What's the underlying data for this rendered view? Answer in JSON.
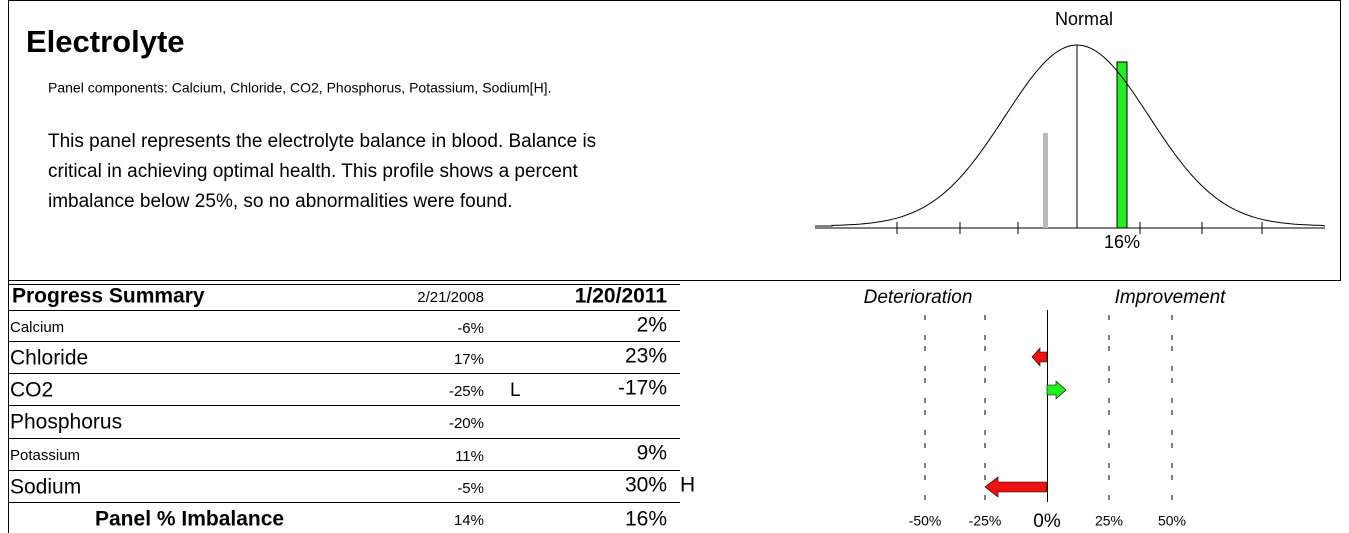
{
  "header": {
    "title": "Electrolyte",
    "components": "Panel components: Calcium, Chloride, CO2, Phosphorus, Potassium, Sodium[H].",
    "description": [
      "This panel represents the electrolyte balance in blood. Balance is",
      "critical in achieving optimal health. This profile shows a percent",
      "imbalance below 25%, so no abnormalities were found."
    ]
  },
  "curve": {
    "label": "Normal",
    "value_label": "16%"
  },
  "table": {
    "title": "Progress Summary",
    "columns": [
      "2/21/2008",
      "1/20/2011"
    ],
    "rows": [
      {
        "name": "Calcium",
        "previous": "-6%",
        "current": "2%"
      },
      {
        "name": "Chloride",
        "previous": "17%",
        "current": "23%"
      },
      {
        "name": "CO2",
        "previous": "-25%",
        "previous_flag": "L",
        "current": "-17%"
      },
      {
        "name": "Phosphorus",
        "previous": "-20%"
      },
      {
        "name": "Potassium",
        "previous": "11%",
        "current": "9%"
      },
      {
        "name": "Sodium",
        "previous": "-5%",
        "current": "30%",
        "current_flag": "H"
      }
    ],
    "summary": {
      "name": "Panel % Imbalance",
      "previous": "14%",
      "current": "16%"
    },
    "deterioration": "Deterioration",
    "improvement": "Improvement",
    "axis": [
      "-50%",
      "-25%",
      "0%",
      "25%",
      "50%"
    ]
  }
}
